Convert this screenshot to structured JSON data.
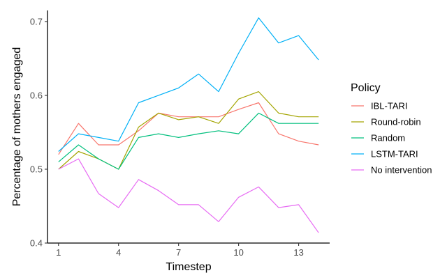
{
  "chart_data": {
    "type": "line",
    "title": "",
    "xlabel": "Timestep",
    "ylabel": "Percentage of mothers engaged",
    "x": [
      1,
      2,
      3,
      4,
      5,
      6,
      7,
      8,
      9,
      10,
      11,
      12,
      13,
      14
    ],
    "xlim": [
      0.45,
      14.55
    ],
    "ylim": [
      0.4,
      0.715
    ],
    "xticks": [
      1,
      4,
      7,
      10,
      13
    ],
    "xtick_labels": [
      "1",
      "4",
      "7",
      "10",
      "13"
    ],
    "yticks": [
      0.4,
      0.5,
      0.6,
      0.7
    ],
    "ytick_labels": [
      "0.4",
      "0.5",
      "0.6",
      "0.7"
    ],
    "grid": false,
    "legend_title": "Policy",
    "legend_position": "right",
    "series": [
      {
        "name": "IBL-TARI",
        "color": "#F8766D",
        "values": [
          0.52,
          0.562,
          0.533,
          0.533,
          0.552,
          0.576,
          0.571,
          0.571,
          0.571,
          0.581,
          0.59,
          0.548,
          0.538,
          0.533
        ]
      },
      {
        "name": "Round-robin",
        "color": "#A3A500",
        "values": [
          0.5,
          0.524,
          0.514,
          0.5,
          0.557,
          0.576,
          0.567,
          0.571,
          0.562,
          0.595,
          0.605,
          0.576,
          0.571,
          0.571
        ]
      },
      {
        "name": "Random",
        "color": "#00BF7D",
        "values": [
          0.51,
          0.533,
          0.514,
          0.5,
          0.543,
          0.548,
          0.543,
          0.548,
          0.552,
          0.548,
          0.576,
          0.562,
          0.562,
          0.562
        ]
      },
      {
        "name": "LSTM-TARI",
        "color": "#00B0F6",
        "values": [
          0.524,
          0.548,
          0.543,
          0.538,
          0.59,
          0.6,
          0.61,
          0.629,
          0.605,
          0.657,
          0.705,
          0.671,
          0.681,
          0.648
        ]
      },
      {
        "name": "No intervention",
        "color": "#E76BF3",
        "values": [
          0.5,
          0.514,
          0.467,
          0.448,
          0.486,
          0.471,
          0.452,
          0.452,
          0.429,
          0.462,
          0.476,
          0.448,
          0.452,
          0.414
        ]
      }
    ]
  }
}
